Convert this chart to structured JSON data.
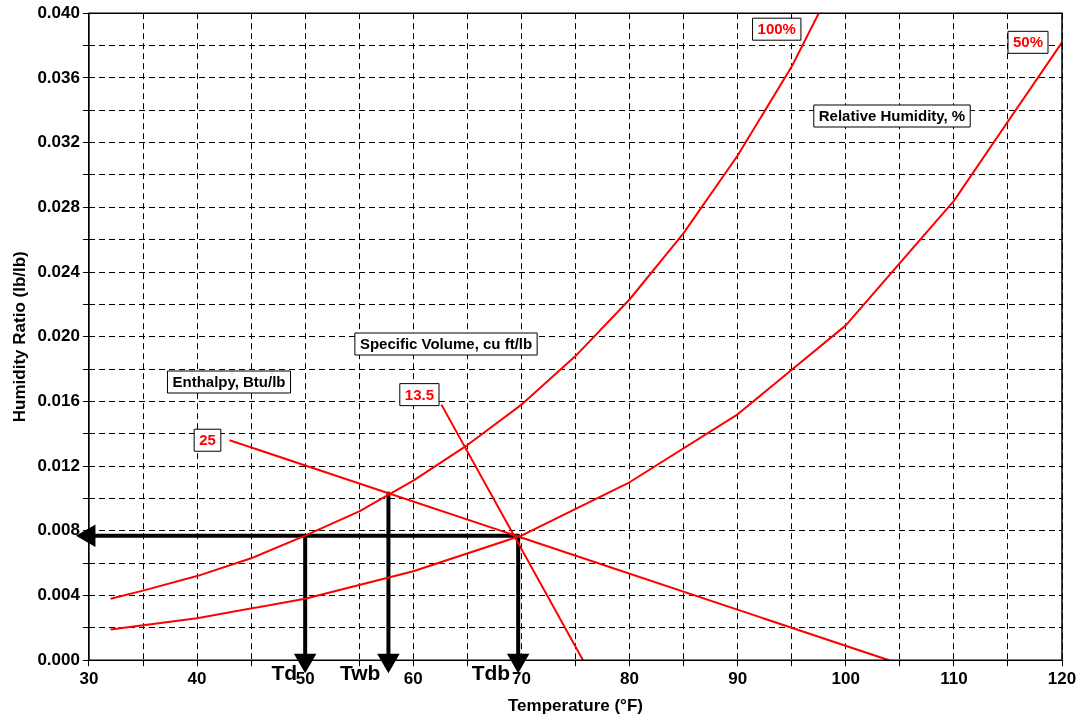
{
  "chart_data": {
    "type": "line",
    "xlabel": "Temperature (°F)",
    "ylabel": "Humidity Ratio (lb/lb)",
    "xlim": [
      30,
      120
    ],
    "ylim": [
      0,
      0.04
    ],
    "xticks": [
      30,
      {
        "value": 35,
        "label": null
      },
      40,
      {
        "value": 45,
        "label": null
      },
      50,
      {
        "value": 55,
        "label": null
      },
      60,
      {
        "value": 65,
        "label": null
      },
      70,
      {
        "value": 75,
        "label": null
      },
      80,
      {
        "value": 85,
        "label": null
      },
      90,
      {
        "value": 95,
        "label": null
      },
      100,
      {
        "value": 105,
        "label": null
      },
      110,
      {
        "value": 115,
        "label": null
      },
      120
    ],
    "yticks": [
      {
        "value": 0,
        "label": "0.000"
      },
      {
        "value": 0.002,
        "label": null
      },
      {
        "value": 0.004,
        "label": "0.004"
      },
      {
        "value": 0.006,
        "label": null
      },
      {
        "value": 0.008,
        "label": "0.008"
      },
      {
        "value": 0.01,
        "label": null
      },
      {
        "value": 0.012,
        "label": "0.012"
      },
      {
        "value": 0.014,
        "label": null
      },
      {
        "value": 0.016,
        "label": "0.016"
      },
      {
        "value": 0.018,
        "label": null
      },
      {
        "value": 0.02,
        "label": "0.020"
      },
      {
        "value": 0.022,
        "label": null
      },
      {
        "value": 0.024,
        "label": "0.024"
      },
      {
        "value": 0.026,
        "label": null
      },
      {
        "value": 0.028,
        "label": "0.028"
      },
      {
        "value": 0.03,
        "label": null
      },
      {
        "value": 0.032,
        "label": "0.032"
      },
      {
        "value": 0.034,
        "label": null
      },
      {
        "value": 0.036,
        "label": "0.036"
      },
      {
        "value": 0.038,
        "label": null
      },
      {
        "value": 0.04,
        "label": "0.040"
      }
    ],
    "grid": true,
    "legend": false,
    "marker": "none",
    "line_style": "solid",
    "series": [
      {
        "name": "100%",
        "color": "#ff0000",
        "x": [
          32,
          35,
          40,
          45,
          50,
          55,
          60,
          65,
          70,
          75,
          80,
          85,
          90,
          95,
          97.5
        ],
        "values": [
          0.0038,
          0.0043,
          0.0052,
          0.0063,
          0.0077,
          0.0092,
          0.0111,
          0.0133,
          0.0158,
          0.0188,
          0.0223,
          0.0264,
          0.0312,
          0.0367,
          0.04
        ]
      },
      {
        "name": "50%",
        "color": "#ff0000",
        "x": [
          32,
          40,
          50,
          60,
          70,
          80,
          90,
          100,
          110,
          120
        ],
        "values": [
          0.0019,
          0.0026,
          0.0038,
          0.0055,
          0.0077,
          0.011,
          0.0152,
          0.0207,
          0.0284,
          0.0382
        ]
      },
      {
        "name": "25",
        "color": "#ff0000",
        "x": [
          43,
          104
        ],
        "values": [
          0.0136,
          0
        ]
      },
      {
        "name": "13.5",
        "color": "#ff0000",
        "x": [
          62.6,
          75.7
        ],
        "values": [
          0.0158,
          0
        ]
      },
      {
        "color": "#000000",
        "marker": "triangle",
        "x": [
          69.7,
          30
        ],
        "values": [
          0.0077,
          0.0077
        ]
      },
      {
        "color": "#000000",
        "marker": "triangle",
        "x": [
          50,
          50
        ],
        "values": [
          0.0077,
          0
        ]
      },
      {
        "color": "#000000",
        "marker": "triangle",
        "x": [
          57.7,
          57.7
        ],
        "values": [
          0.0103,
          0
        ]
      },
      {
        "color": "#000000",
        "marker": "triangle",
        "x": [
          69.7,
          69.7
        ],
        "values": [
          0.0077,
          0
        ]
      }
    ],
    "annotations": [
      "Relative Humidity, %",
      "Specific Volume, cu ft/lb",
      "Enthalpy, Btu/lb",
      {
        "text": "Td",
        "x": 50,
        "y": 0
      },
      {
        "text": "Twb",
        "x": 57.7,
        "y": 0
      },
      {
        "text": "Tdb",
        "x": 69.7,
        "y": 0
      }
    ]
  }
}
